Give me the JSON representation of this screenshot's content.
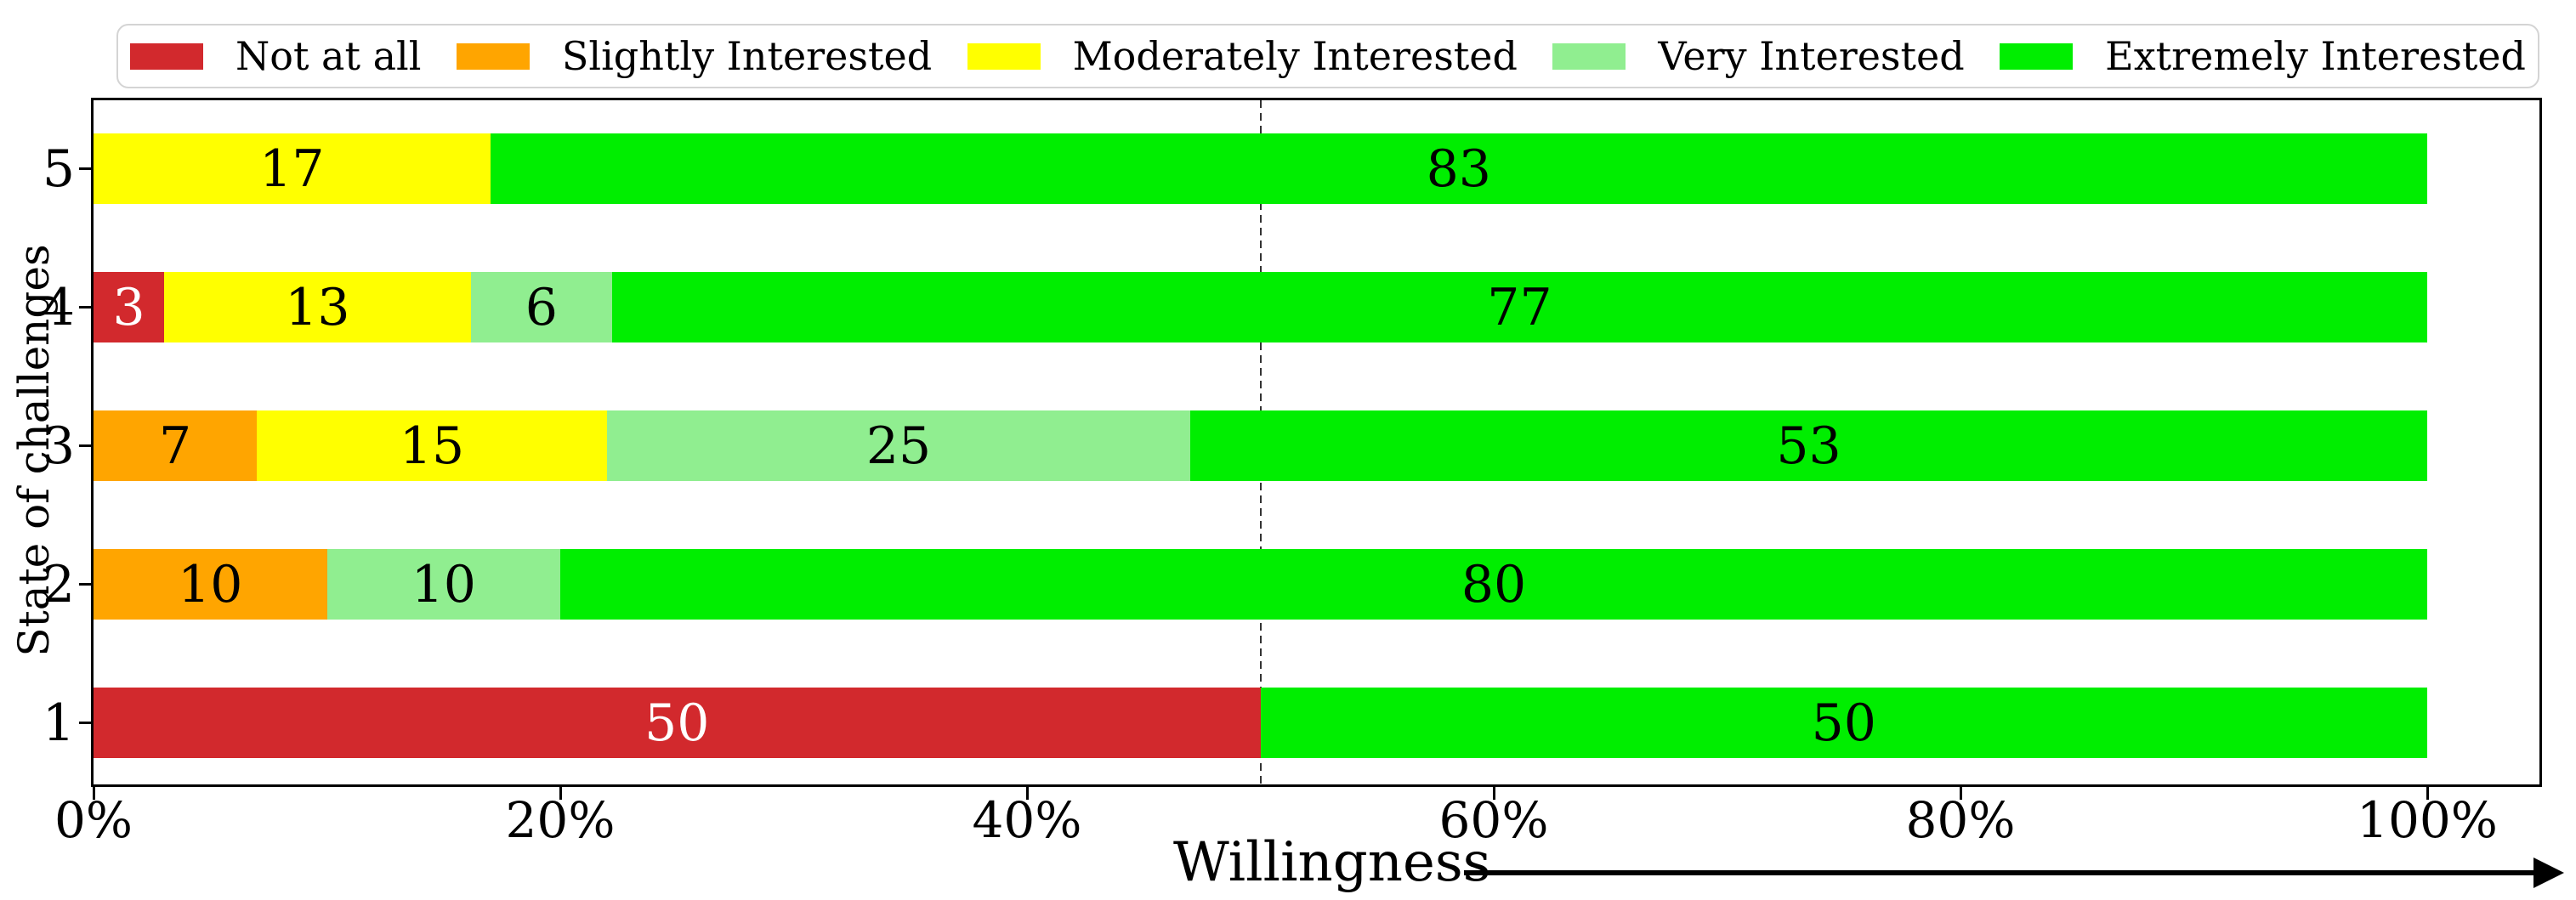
{
  "chart_data": {
    "type": "bar",
    "orientation": "horizontal",
    "stacked": true,
    "title": "",
    "xlabel": "Willingness",
    "ylabel": "State of challenges",
    "categories": [
      "5",
      "4",
      "3",
      "2",
      "1"
    ],
    "series": [
      {
        "name": "Not at all",
        "color": "#d2292d",
        "label_color": "#ffffff",
        "values": [
          0,
          3,
          0,
          0,
          50
        ]
      },
      {
        "name": "Slightly Interested",
        "color": "#ffa500",
        "label_color": "#000000",
        "values": [
          0,
          0,
          7,
          10,
          0
        ]
      },
      {
        "name": "Moderately Interested",
        "color": "#ffff00",
        "label_color": "#000000",
        "values": [
          17,
          13,
          15,
          0,
          0
        ]
      },
      {
        "name": "Very Interested",
        "color": "#90ee90",
        "label_color": "#000000",
        "values": [
          0,
          6,
          25,
          10,
          0
        ]
      },
      {
        "name": "Extremely Interested",
        "color": "#00ee00",
        "label_color": "#000000",
        "values": [
          83,
          77,
          53,
          80,
          50
        ]
      }
    ],
    "x_ticks": [
      "0%",
      "20%",
      "40%",
      "60%",
      "80%",
      "100%"
    ],
    "xlim": [
      0,
      100
    ],
    "reference_line_pct": 50,
    "legend_position": "top",
    "grid": false
  },
  "style": {
    "legend_border_color": "#d4d4d4",
    "spine_color": "#000000",
    "background": "#ffffff",
    "reference_line_style": "dashed"
  }
}
